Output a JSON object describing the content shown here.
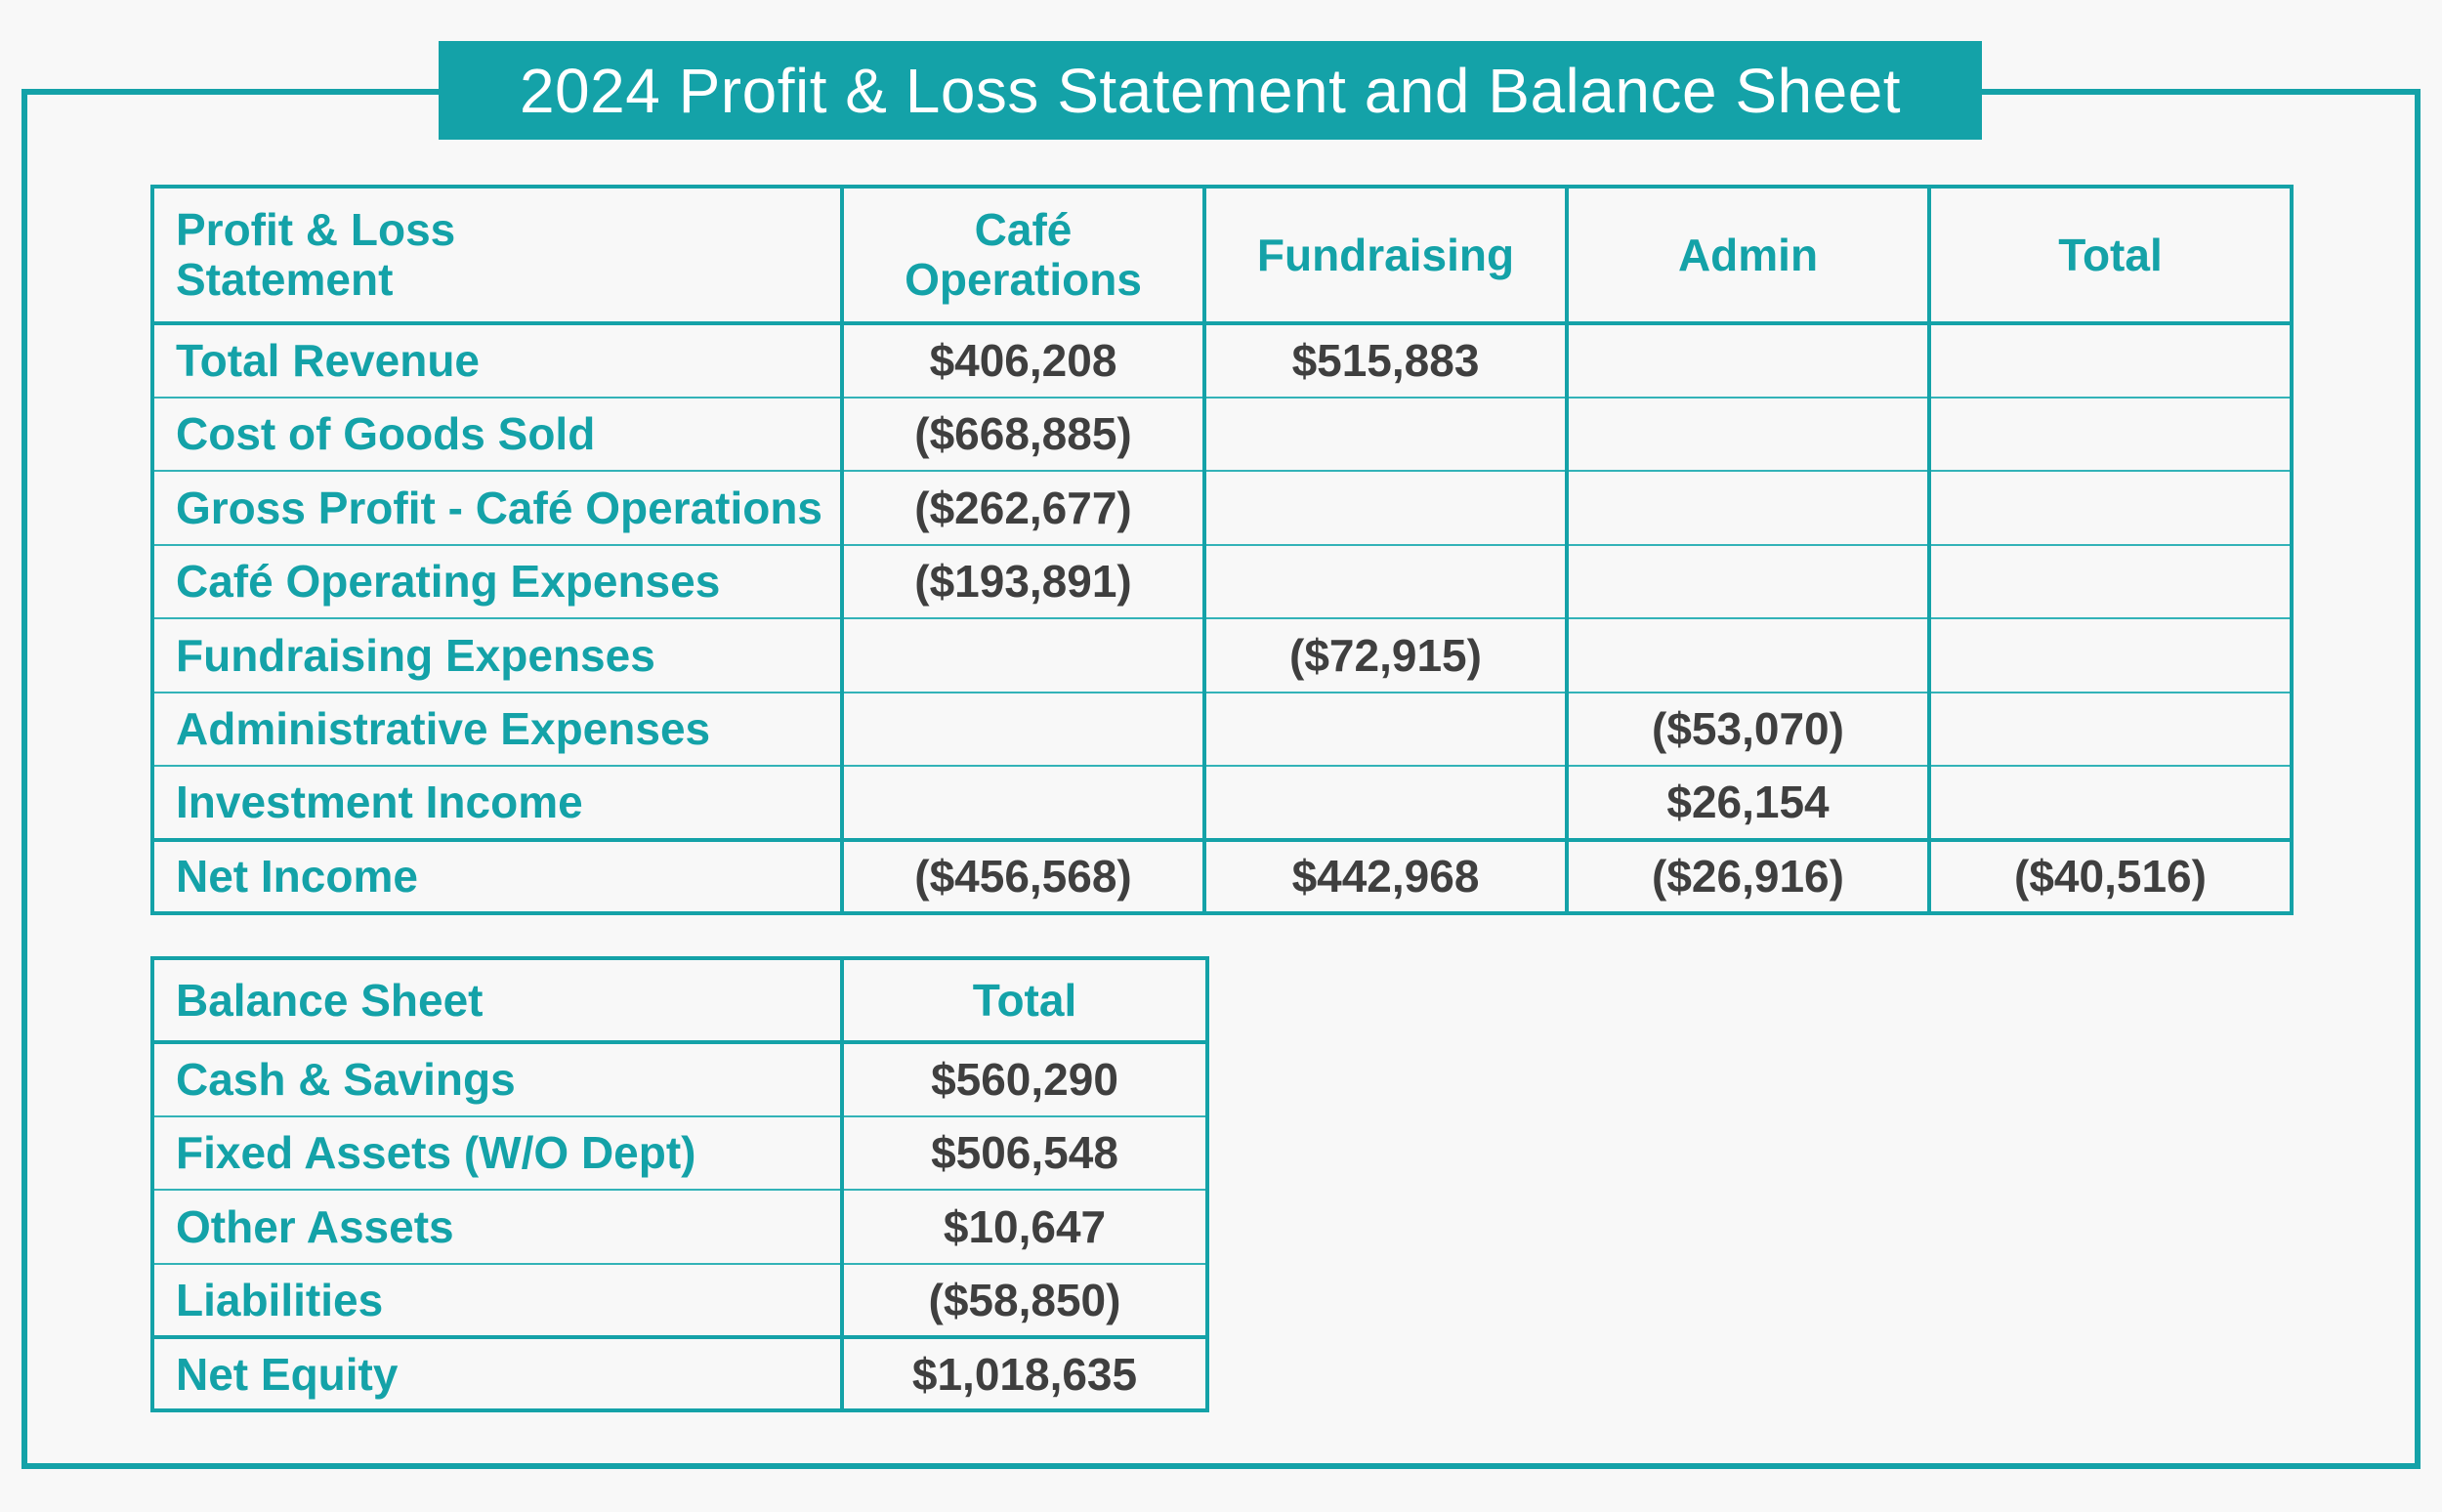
{
  "title": "2024 Profit & Loss Statement and Balance Sheet",
  "profit_loss": {
    "header": {
      "label_line1": "Profit & Loss",
      "label_line2": "Statement",
      "col1_line1": "Café",
      "col1_line2": "Operations",
      "col2": "Fundraising",
      "col3": "Admin",
      "col4": "Total"
    },
    "rows": [
      {
        "label": "Total Revenue",
        "cafe": "$406,208",
        "fundraising": "$515,883",
        "admin": "",
        "total": ""
      },
      {
        "label": "Cost of Goods Sold",
        "cafe": "($668,885)",
        "fundraising": "",
        "admin": "",
        "total": ""
      },
      {
        "label": "Gross Profit - Café Operations",
        "cafe": "($262,677)",
        "fundraising": "",
        "admin": "",
        "total": ""
      },
      {
        "label": "Café Operating Expenses",
        "cafe": "($193,891)",
        "fundraising": "",
        "admin": "",
        "total": ""
      },
      {
        "label": "Fundraising Expenses",
        "cafe": "",
        "fundraising": "($72,915)",
        "admin": "",
        "total": ""
      },
      {
        "label": "Administrative Expenses",
        "cafe": "",
        "fundraising": "",
        "admin": "($53,070)",
        "total": ""
      },
      {
        "label": "Investment Income",
        "cafe": "",
        "fundraising": "",
        "admin": "$26,154",
        "total": ""
      }
    ],
    "net": {
      "label": "Net Income",
      "cafe": "($456,568)",
      "fundraising": "$442,968",
      "admin": "($26,916)",
      "total": "($40,516)"
    }
  },
  "balance_sheet": {
    "header": {
      "label": "Balance Sheet",
      "total": "Total"
    },
    "rows": [
      {
        "label": "Cash & Savings",
        "total": "$560,290"
      },
      {
        "label": "Fixed Assets (W/O Dept)",
        "total": "$506,548"
      },
      {
        "label": "Other Assets",
        "total": "$10,647"
      },
      {
        "label": "Liabilities",
        "total": "($58,850)"
      }
    ],
    "net": {
      "label": "Net Equity",
      "total": "$1,018,635"
    }
  },
  "colors": {
    "accent": "#14a2a8",
    "value_text": "#3f3f3f",
    "background": "#f8f8f8"
  }
}
